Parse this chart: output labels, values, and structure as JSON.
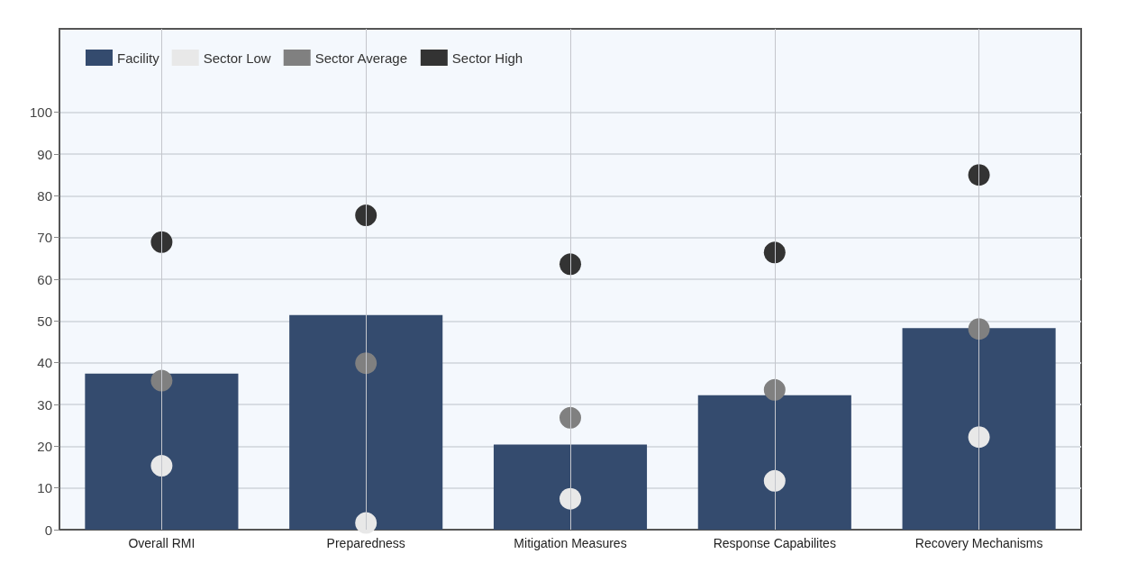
{
  "chart_data": {
    "type": "bar",
    "categories": [
      "Overall RMI",
      "Preparedness",
      "Mitigation Measures",
      "Response Capabilites",
      "Recovery Mechanisms"
    ],
    "series": [
      {
        "name": "Facility",
        "color": "#344b6e",
        "values": [
          37.4,
          51.4,
          20.4,
          32.2,
          48.3
        ]
      },
      {
        "name": "Sector Low",
        "type": "scatter",
        "color": "#e8e8e8",
        "x": [
          "Overall RMI",
          "Preparedness",
          "Mitigation Measures",
          "Response Capabilites",
          "Recovery Mechanisms"
        ],
        "values": [
          15.3,
          1.6,
          7.4,
          11.7,
          22.2
        ]
      },
      {
        "name": "Sector Average",
        "type": "scatter",
        "color": "#808080",
        "x": [
          "Overall RMI",
          "Preparedness",
          "Mitigation Measures",
          "Response Capabilites",
          "Recovery Mechanisms"
        ],
        "values": [
          35.7,
          39.9,
          26.8,
          33.5,
          48.1
        ]
      },
      {
        "name": "Sector High",
        "type": "scatter",
        "color": "#333333",
        "x": [
          "Overall RMI",
          "Preparedness",
          "Mitigation Measures",
          "Response Capabilites",
          "Recovery Mechanisms"
        ],
        "values": [
          68.9,
          75.3,
          63.6,
          66.4,
          85.0
        ]
      }
    ],
    "ylim": [
      0,
      120
    ],
    "yticks": [
      0,
      10,
      20,
      30,
      40,
      50,
      60,
      70,
      80,
      90,
      100
    ],
    "grid": true,
    "legend": "top left",
    "marker": "circle"
  }
}
